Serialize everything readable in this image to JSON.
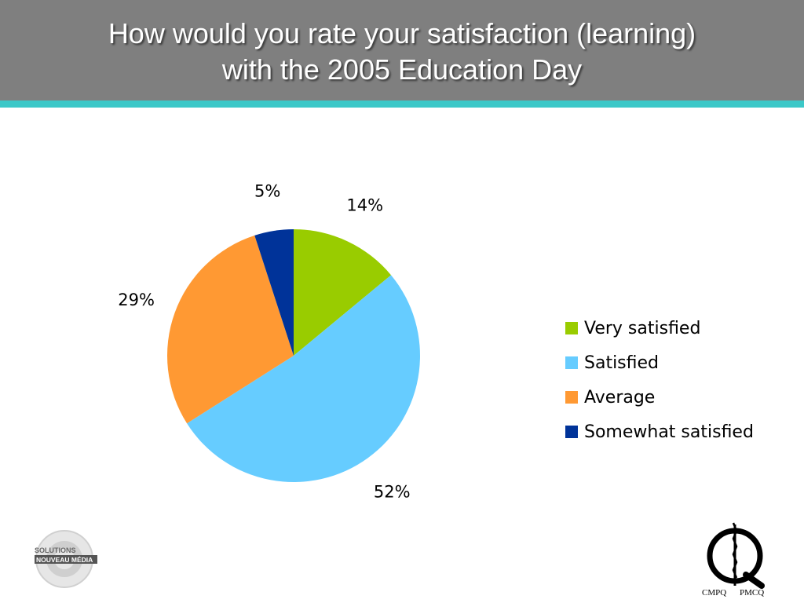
{
  "title": {
    "line1": "How would you rate your satisfaction (learning)",
    "line2": "with the 2005 Education Day"
  },
  "colors": {
    "header": "#7f7f7f",
    "rule": "#3cc8c8"
  },
  "chart_data": {
    "type": "pie",
    "title": "How would you rate your satisfaction (learning) with the 2005 Education Day",
    "categories": [
      "Very satisfied",
      "Satisfied",
      "Average",
      "Somewhat satisfied"
    ],
    "values": [
      14,
      52,
      29,
      5
    ],
    "value_labels": [
      "14%",
      "52%",
      "29%",
      "5%"
    ],
    "colors": [
      "#99cc00",
      "#66ccff",
      "#ff9933",
      "#003399"
    ],
    "legend_position": "right"
  },
  "logos": {
    "left": "SOLUTIONS NOUVEAU MÉDIA",
    "right": "CMPQ PMCQ"
  }
}
